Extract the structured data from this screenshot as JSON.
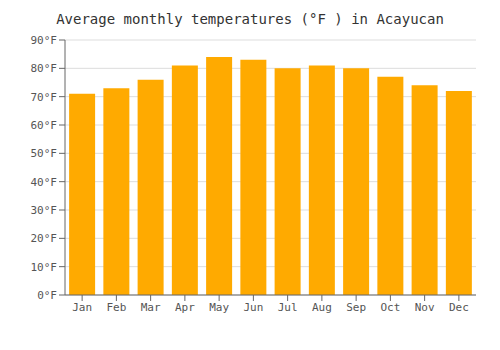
{
  "chart_data": {
    "type": "bar",
    "title": "Average monthly temperatures (°F ) in Acayucan",
    "categories": [
      "Jan",
      "Feb",
      "Mar",
      "Apr",
      "May",
      "Jun",
      "Jul",
      "Aug",
      "Sep",
      "Oct",
      "Nov",
      "Dec"
    ],
    "values": [
      71,
      73,
      76,
      81,
      84,
      83,
      80,
      81,
      80,
      77,
      74,
      72
    ],
    "color": "#FFAA00",
    "ylim": [
      0,
      90
    ],
    "yticks": [
      {
        "value": 0,
        "label": "0°F"
      },
      {
        "value": 10,
        "label": "10°F"
      },
      {
        "value": 20,
        "label": "20°F"
      },
      {
        "value": 30,
        "label": "30°F"
      },
      {
        "value": 40,
        "label": "40°F"
      },
      {
        "value": 50,
        "label": "50°F"
      },
      {
        "value": 60,
        "label": "60°F"
      },
      {
        "value": 70,
        "label": "70°F"
      },
      {
        "value": 80,
        "label": "80°F"
      },
      {
        "value": 90,
        "label": "90°F"
      }
    ],
    "grid": true
  }
}
